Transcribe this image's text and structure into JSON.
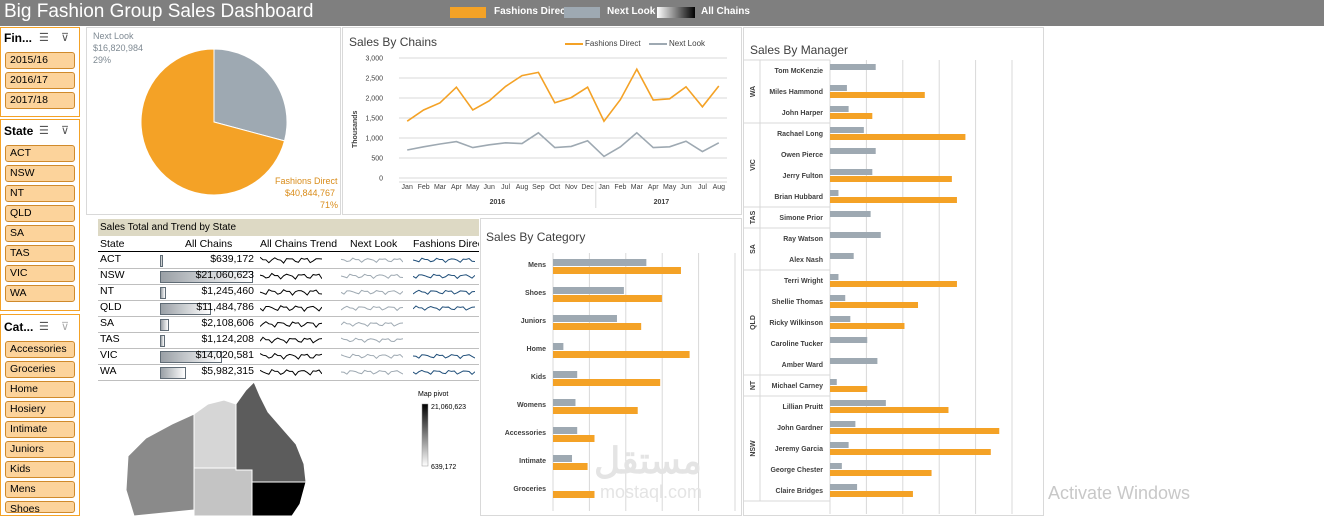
{
  "title": "Big Fashion Group Sales Dashboard",
  "legend": [
    {
      "label": "Fashions Direct",
      "color": "#f4a226"
    },
    {
      "label": "Next Look",
      "color": "#9ea9b2"
    },
    {
      "label": "All Chains",
      "color": "#000000"
    }
  ],
  "slicers": {
    "fiscal": {
      "header": "Fin...",
      "items": [
        "2015/16",
        "2016/17",
        "2017/18"
      ]
    },
    "state": {
      "header": "State",
      "items": [
        "ACT",
        "NSW",
        "NT",
        "QLD",
        "SA",
        "TAS",
        "VIC",
        "WA"
      ]
    },
    "category": {
      "header": "Cat...",
      "items": [
        "Accessories",
        "Groceries",
        "Home",
        "Hosiery",
        "Intimate",
        "Juniors",
        "Kids",
        "Mens",
        "Shoes"
      ]
    }
  },
  "pie": {
    "next_look": {
      "name": "Next Look",
      "value": "$16,820,984",
      "pct": "29%",
      "share": 0.29
    },
    "fashions_direct": {
      "name": "Fashions Direct",
      "value": "$40,844,767",
      "pct": "71%",
      "share": 0.71
    }
  },
  "chains_chart": {
    "title": "Sales By Chains",
    "ylabel": "Thousands",
    "legend": [
      "Fashions Direct",
      "Next Look"
    ],
    "yticks": [
      "0",
      "500",
      "1,000",
      "1,500",
      "2,000",
      "2,500",
      "3,000"
    ],
    "months": [
      "Jan",
      "Feb",
      "Mar",
      "Apr",
      "May",
      "Jun",
      "Jul",
      "Aug",
      "Sep",
      "Oct",
      "Nov",
      "Dec",
      "Jan",
      "Feb",
      "Mar",
      "Apr",
      "May",
      "Jun",
      "Jul",
      "Aug"
    ],
    "years": [
      "2016",
      "2017"
    ]
  },
  "chart_data": [
    {
      "type": "line",
      "title": "Sales By Chains",
      "ylabel": "Thousands",
      "ylim": [
        0,
        3000
      ],
      "x": [
        "Jan",
        "Feb",
        "Mar",
        "Apr",
        "May",
        "Jun",
        "Jul",
        "Aug",
        "Sep",
        "Oct",
        "Nov",
        "Dec",
        "Jan",
        "Feb",
        "Mar",
        "Apr",
        "May",
        "Jun",
        "Jul",
        "Aug"
      ],
      "series": [
        {
          "name": "Fashions Direct",
          "color": "#f4a226",
          "values": [
            1420,
            1700,
            1880,
            2270,
            1700,
            1930,
            2290,
            2560,
            2640,
            1880,
            2010,
            2270,
            1420,
            1960,
            2720,
            1950,
            1980,
            2280,
            1780,
            2300
          ]
        },
        {
          "name": "Next Look",
          "color": "#9ea9b2",
          "values": [
            700,
            780,
            850,
            910,
            760,
            830,
            880,
            860,
            1130,
            760,
            790,
            930,
            540,
            780,
            1130,
            760,
            780,
            920,
            660,
            880
          ]
        }
      ]
    },
    {
      "type": "pie",
      "categories": [
        "Next Look",
        "Fashions Direct"
      ],
      "values": [
        16820984,
        40844767
      ]
    },
    {
      "type": "bar",
      "title": "Sales By Category",
      "categories": [
        "Mens",
        "Shoes",
        "Juniors",
        "Home",
        "Kids",
        "Womens",
        "Accessories",
        "Intimate",
        "Groceries"
      ],
      "series": [
        {
          "name": "Next Look",
          "color": "#9ea9b2",
          "values": [
            0.54,
            0.41,
            0.37,
            0.06,
            0.14,
            0.13,
            0.14,
            0.11,
            0.0
          ]
        },
        {
          "name": "Fashions Direct",
          "color": "#f4a226",
          "values": [
            0.74,
            0.63,
            0.51,
            0.79,
            0.62,
            0.49,
            0.24,
            0.2,
            0.24
          ]
        }
      ]
    },
    {
      "type": "bar",
      "title": "Sales By Manager",
      "categories": [
        "Tom McKenzie",
        "Miles Hammond",
        "John Harper",
        "Rachael Long",
        "Owen Pierce",
        "Jerry Fulton",
        "Brian Hubbard",
        "Simone Prior",
        "Ray Watson",
        "Alex Nash",
        "Terri Wright",
        "Shellie Thomas",
        "Ricky Wilkinson",
        "Caroline Tucker",
        "Amber Ward",
        "Michael Carney",
        "Lillian Pruitt",
        "John Gardner",
        "Jeremy Garcia",
        "George Chester",
        "Claire Bridges"
      ],
      "series": [
        {
          "name": "Next Look",
          "color": "#9ea9b2",
          "values": [
            0.27,
            0.1,
            0.11,
            0.2,
            0.27,
            0.25,
            0.05,
            0.24,
            0.3,
            0.14,
            0.05,
            0.09,
            0.12,
            0.22,
            0.28,
            0.04,
            0.33,
            0.15,
            0.11,
            0.07,
            0.16
          ]
        },
        {
          "name": "Fashions Direct",
          "color": "#f4a226",
          "values": [
            0.0,
            0.56,
            0.25,
            0.8,
            0.0,
            0.72,
            0.75,
            0.0,
            0.0,
            0.0,
            0.75,
            0.52,
            0.44,
            0.0,
            0.0,
            0.22,
            0.7,
            1.0,
            0.95,
            0.6,
            0.49
          ]
        }
      ]
    }
  ],
  "state_table": {
    "title": "Sales Total and Trend by State",
    "headers": [
      "State",
      "All Chains",
      "All Chains Trend",
      "Next Look",
      "Fashions Direc"
    ],
    "rows": [
      {
        "state": "ACT",
        "total": "$639,172",
        "share": 0.03
      },
      {
        "state": "NSW",
        "total": "$21,060,623",
        "share": 1.0
      },
      {
        "state": "NT",
        "total": "$1,245,460",
        "share": 0.06
      },
      {
        "state": "QLD",
        "total": "$11,484,786",
        "share": 0.55
      },
      {
        "state": "SA",
        "total": "$2,108,606",
        "share": 0.1
      },
      {
        "state": "TAS",
        "total": "$1,124,208",
        "share": 0.05
      },
      {
        "state": "VIC",
        "total": "$14,020,581",
        "share": 0.67
      },
      {
        "state": "WA",
        "total": "$5,982,315",
        "share": 0.28
      }
    ]
  },
  "map": {
    "legend_title": "Map pivot",
    "max": "21,060,623",
    "min": "639,172"
  },
  "category_chart": {
    "title": "Sales By Category"
  },
  "manager_chart": {
    "title": "Sales By Manager",
    "groups": [
      {
        "state": "WA",
        "names": [
          "Tom McKenzie",
          "Miles Hammond",
          "John Harper"
        ]
      },
      {
        "state": "VIC",
        "names": [
          "Rachael Long",
          "Owen Pierce",
          "Jerry Fulton",
          "Brian Hubbard"
        ]
      },
      {
        "state": "TAS",
        "names": [
          "Simone Prior"
        ]
      },
      {
        "state": "SA",
        "names": [
          "Ray Watson",
          "Alex Nash"
        ]
      },
      {
        "state": "QLD",
        "names": [
          "Terri Wright",
          "Shellie Thomas",
          "Ricky Wilkinson",
          "Caroline Tucker",
          "Amber Ward"
        ]
      },
      {
        "state": "NT",
        "names": [
          "Michael Carney"
        ]
      },
      {
        "state": "NSW",
        "names": [
          "Lillian Pruitt",
          "John Gardner",
          "Jeremy Garcia",
          "George Chester",
          "Claire Bridges"
        ]
      }
    ]
  },
  "watermark": {
    "text": "Activate Windows",
    "brand_ar": "مستقل",
    "brand": "mostaql.com"
  }
}
